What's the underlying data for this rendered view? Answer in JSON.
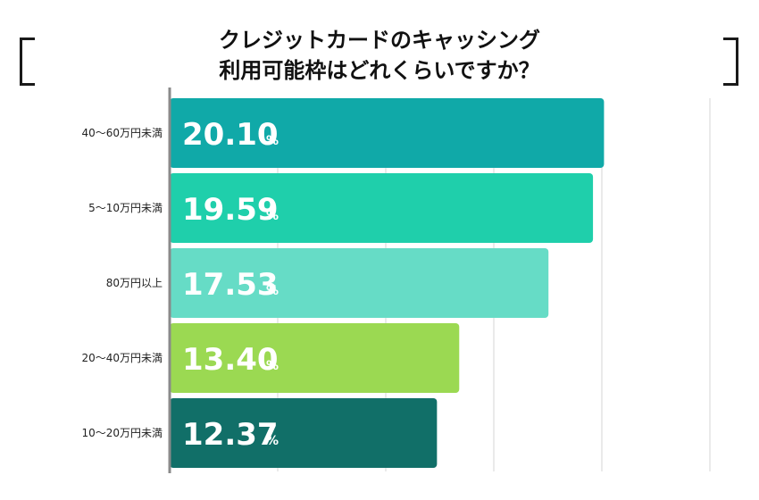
{
  "title_line1": "クレジットカードのキャッシング",
  "title_line2": "利用可能枠はどれくらいですか？",
  "chart_data": {
    "type": "bar",
    "orientation": "horizontal",
    "categories": [
      "40〜60万円未満",
      "5〜10万円未満",
      "80万円以上",
      "20〜40万円未満",
      "10〜20万円未満"
    ],
    "values": [
      20.1,
      19.59,
      17.53,
      13.4,
      12.37
    ],
    "value_labels": [
      "20.10",
      "19.59",
      "17.53",
      "13.40",
      "12.37"
    ],
    "unit": "%",
    "colors": [
      "#10a9a8",
      "#1fcfab",
      "#66dcc6",
      "#9bd952",
      "#116f68"
    ],
    "xlim": [
      0,
      25
    ],
    "gridlines": [
      5,
      10,
      15,
      20,
      25
    ],
    "grid": true
  }
}
